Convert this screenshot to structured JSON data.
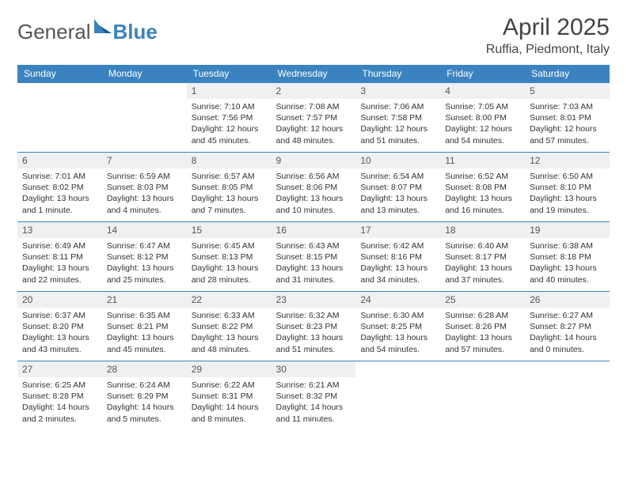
{
  "brand": {
    "part1": "General",
    "part2": "Blue"
  },
  "title": "April 2025",
  "location": "Ruffia, Piedmont, Italy",
  "colors": {
    "header_bg": "#3b83c0",
    "header_fg": "#ffffff",
    "daynum_bg": "#eef0f2",
    "text": "#333333",
    "brand_gray": "#555555",
    "brand_blue": "#3b83c0",
    "border": "#3b83c0"
  },
  "weekdays": [
    "Sunday",
    "Monday",
    "Tuesday",
    "Wednesday",
    "Thursday",
    "Friday",
    "Saturday"
  ],
  "days": [
    {
      "n": "",
      "sr": "",
      "ss": "",
      "dl": ""
    },
    {
      "n": "",
      "sr": "",
      "ss": "",
      "dl": ""
    },
    {
      "n": "1",
      "sr": "Sunrise: 7:10 AM",
      "ss": "Sunset: 7:56 PM",
      "dl": "Daylight: 12 hours and 45 minutes."
    },
    {
      "n": "2",
      "sr": "Sunrise: 7:08 AM",
      "ss": "Sunset: 7:57 PM",
      "dl": "Daylight: 12 hours and 48 minutes."
    },
    {
      "n": "3",
      "sr": "Sunrise: 7:06 AM",
      "ss": "Sunset: 7:58 PM",
      "dl": "Daylight: 12 hours and 51 minutes."
    },
    {
      "n": "4",
      "sr": "Sunrise: 7:05 AM",
      "ss": "Sunset: 8:00 PM",
      "dl": "Daylight: 12 hours and 54 minutes."
    },
    {
      "n": "5",
      "sr": "Sunrise: 7:03 AM",
      "ss": "Sunset: 8:01 PM",
      "dl": "Daylight: 12 hours and 57 minutes."
    },
    {
      "n": "6",
      "sr": "Sunrise: 7:01 AM",
      "ss": "Sunset: 8:02 PM",
      "dl": "Daylight: 13 hours and 1 minute."
    },
    {
      "n": "7",
      "sr": "Sunrise: 6:59 AM",
      "ss": "Sunset: 8:03 PM",
      "dl": "Daylight: 13 hours and 4 minutes."
    },
    {
      "n": "8",
      "sr": "Sunrise: 6:57 AM",
      "ss": "Sunset: 8:05 PM",
      "dl": "Daylight: 13 hours and 7 minutes."
    },
    {
      "n": "9",
      "sr": "Sunrise: 6:56 AM",
      "ss": "Sunset: 8:06 PM",
      "dl": "Daylight: 13 hours and 10 minutes."
    },
    {
      "n": "10",
      "sr": "Sunrise: 6:54 AM",
      "ss": "Sunset: 8:07 PM",
      "dl": "Daylight: 13 hours and 13 minutes."
    },
    {
      "n": "11",
      "sr": "Sunrise: 6:52 AM",
      "ss": "Sunset: 8:08 PM",
      "dl": "Daylight: 13 hours and 16 minutes."
    },
    {
      "n": "12",
      "sr": "Sunrise: 6:50 AM",
      "ss": "Sunset: 8:10 PM",
      "dl": "Daylight: 13 hours and 19 minutes."
    },
    {
      "n": "13",
      "sr": "Sunrise: 6:49 AM",
      "ss": "Sunset: 8:11 PM",
      "dl": "Daylight: 13 hours and 22 minutes."
    },
    {
      "n": "14",
      "sr": "Sunrise: 6:47 AM",
      "ss": "Sunset: 8:12 PM",
      "dl": "Daylight: 13 hours and 25 minutes."
    },
    {
      "n": "15",
      "sr": "Sunrise: 6:45 AM",
      "ss": "Sunset: 8:13 PM",
      "dl": "Daylight: 13 hours and 28 minutes."
    },
    {
      "n": "16",
      "sr": "Sunrise: 6:43 AM",
      "ss": "Sunset: 8:15 PM",
      "dl": "Daylight: 13 hours and 31 minutes."
    },
    {
      "n": "17",
      "sr": "Sunrise: 6:42 AM",
      "ss": "Sunset: 8:16 PM",
      "dl": "Daylight: 13 hours and 34 minutes."
    },
    {
      "n": "18",
      "sr": "Sunrise: 6:40 AM",
      "ss": "Sunset: 8:17 PM",
      "dl": "Daylight: 13 hours and 37 minutes."
    },
    {
      "n": "19",
      "sr": "Sunrise: 6:38 AM",
      "ss": "Sunset: 8:18 PM",
      "dl": "Daylight: 13 hours and 40 minutes."
    },
    {
      "n": "20",
      "sr": "Sunrise: 6:37 AM",
      "ss": "Sunset: 8:20 PM",
      "dl": "Daylight: 13 hours and 43 minutes."
    },
    {
      "n": "21",
      "sr": "Sunrise: 6:35 AM",
      "ss": "Sunset: 8:21 PM",
      "dl": "Daylight: 13 hours and 45 minutes."
    },
    {
      "n": "22",
      "sr": "Sunrise: 6:33 AM",
      "ss": "Sunset: 8:22 PM",
      "dl": "Daylight: 13 hours and 48 minutes."
    },
    {
      "n": "23",
      "sr": "Sunrise: 6:32 AM",
      "ss": "Sunset: 8:23 PM",
      "dl": "Daylight: 13 hours and 51 minutes."
    },
    {
      "n": "24",
      "sr": "Sunrise: 6:30 AM",
      "ss": "Sunset: 8:25 PM",
      "dl": "Daylight: 13 hours and 54 minutes."
    },
    {
      "n": "25",
      "sr": "Sunrise: 6:28 AM",
      "ss": "Sunset: 8:26 PM",
      "dl": "Daylight: 13 hours and 57 minutes."
    },
    {
      "n": "26",
      "sr": "Sunrise: 6:27 AM",
      "ss": "Sunset: 8:27 PM",
      "dl": "Daylight: 14 hours and 0 minutes."
    },
    {
      "n": "27",
      "sr": "Sunrise: 6:25 AM",
      "ss": "Sunset: 8:28 PM",
      "dl": "Daylight: 14 hours and 2 minutes."
    },
    {
      "n": "28",
      "sr": "Sunrise: 6:24 AM",
      "ss": "Sunset: 8:29 PM",
      "dl": "Daylight: 14 hours and 5 minutes."
    },
    {
      "n": "29",
      "sr": "Sunrise: 6:22 AM",
      "ss": "Sunset: 8:31 PM",
      "dl": "Daylight: 14 hours and 8 minutes."
    },
    {
      "n": "30",
      "sr": "Sunrise: 6:21 AM",
      "ss": "Sunset: 8:32 PM",
      "dl": "Daylight: 14 hours and 11 minutes."
    },
    {
      "n": "",
      "sr": "",
      "ss": "",
      "dl": ""
    },
    {
      "n": "",
      "sr": "",
      "ss": "",
      "dl": ""
    },
    {
      "n": "",
      "sr": "",
      "ss": "",
      "dl": ""
    }
  ]
}
